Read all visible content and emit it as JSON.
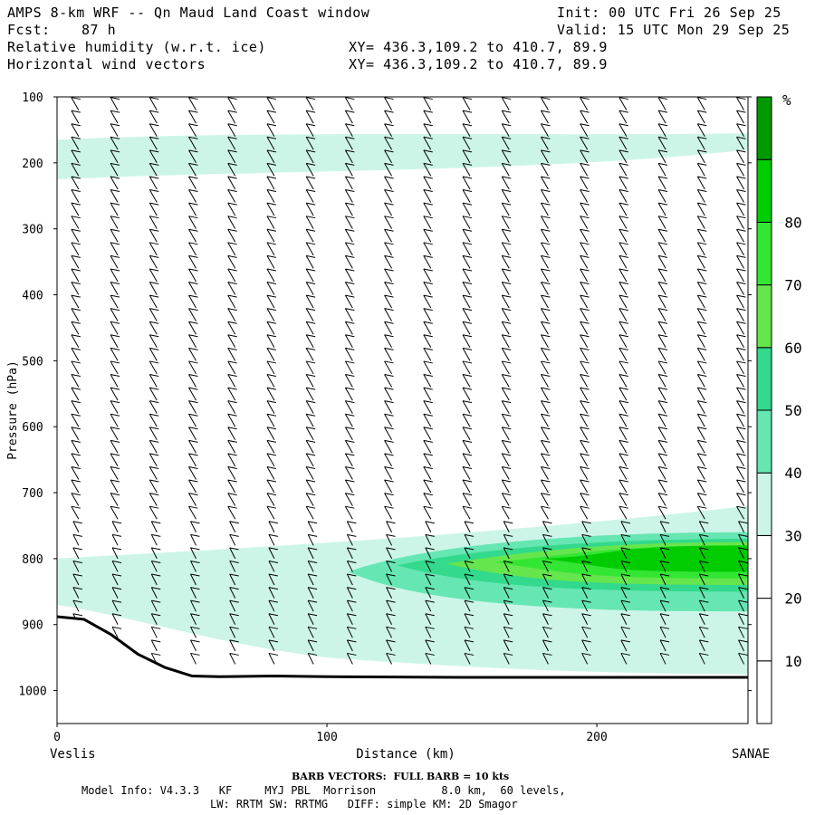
{
  "header": {
    "title": "AMPS 8-km WRF -- Qn Maud Land Coast window",
    "fcst_label": "Fcst:",
    "fcst_value": "87 h",
    "init": "Init: 00 UTC Fri 26 Sep 25",
    "valid": "Valid: 15 UTC Mon 29 Sep 25",
    "field1": "Relative humidity (w.r.t. ice)",
    "field1_xy": "XY= 436.3,109.2 to 410.7, 89.9",
    "field2": "Horizontal wind vectors",
    "field2_xy": "XY= 436.3,109.2 to 410.7, 89.9"
  },
  "footer": {
    "barb_note": "BARB VECTORS:  FULL BARB = 10 kts",
    "model_info": "Model Info: V4.3.3   KF     MYJ PBL  Morrison          8.0 km,  60 levels,",
    "model_info2": "LW: RRTM SW: RRTMG   DIFF: simple KM: 2D Smagor"
  },
  "chart_data": {
    "type": "heatmap",
    "xlabel": "Distance (km)",
    "ylabel": "Pressure (hPa)",
    "x_left_label": "Veslis",
    "x_right_label": "SANAE",
    "xlim": [
      0,
      256
    ],
    "ylim": [
      1050,
      100
    ],
    "x_ticks": [
      0,
      100,
      200
    ],
    "y_ticks": [
      100,
      200,
      300,
      400,
      500,
      600,
      700,
      800,
      900,
      1000
    ],
    "colorbar": {
      "unit": "%",
      "levels": [
        10,
        20,
        30,
        40,
        50,
        60,
        70,
        80
      ],
      "colors": [
        "#ffffff",
        "#ffffff",
        "#ffffff",
        "#ccf5e8",
        "#66e6b3",
        "#33d98c",
        "#66e64d",
        "#33e633",
        "#00cc00",
        "#009900"
      ]
    },
    "terrain_hpa": [
      [
        0,
        888
      ],
      [
        10,
        892
      ],
      [
        20,
        915
      ],
      [
        30,
        945
      ],
      [
        40,
        965
      ],
      [
        50,
        978
      ],
      [
        60,
        979
      ],
      [
        80,
        978
      ],
      [
        100,
        979
      ],
      [
        150,
        980
      ],
      [
        200,
        980
      ],
      [
        256,
        980
      ]
    ],
    "rh_regions": [
      {
        "level": 30,
        "desc": "upper band",
        "p_top": 155,
        "p_bot": 225
      },
      {
        "level": 30,
        "desc": "low layer",
        "p_top": 720,
        "p_bot": 975
      },
      {
        "level": 40,
        "desc": "low layer core",
        "p_top": 760,
        "p_bot": 880
      },
      {
        "level": 50,
        "desc": "low layer core",
        "p_top": 770,
        "p_bot": 850
      },
      {
        "level": 60,
        "desc": "low layer core",
        "p_top": 775,
        "p_bot": 840
      },
      {
        "level": 70,
        "desc": "low layer core",
        "p_top": 780,
        "p_bot": 830
      },
      {
        "level": 80,
        "desc": "low layer core",
        "p_top": 780,
        "p_bot": 820
      }
    ]
  }
}
